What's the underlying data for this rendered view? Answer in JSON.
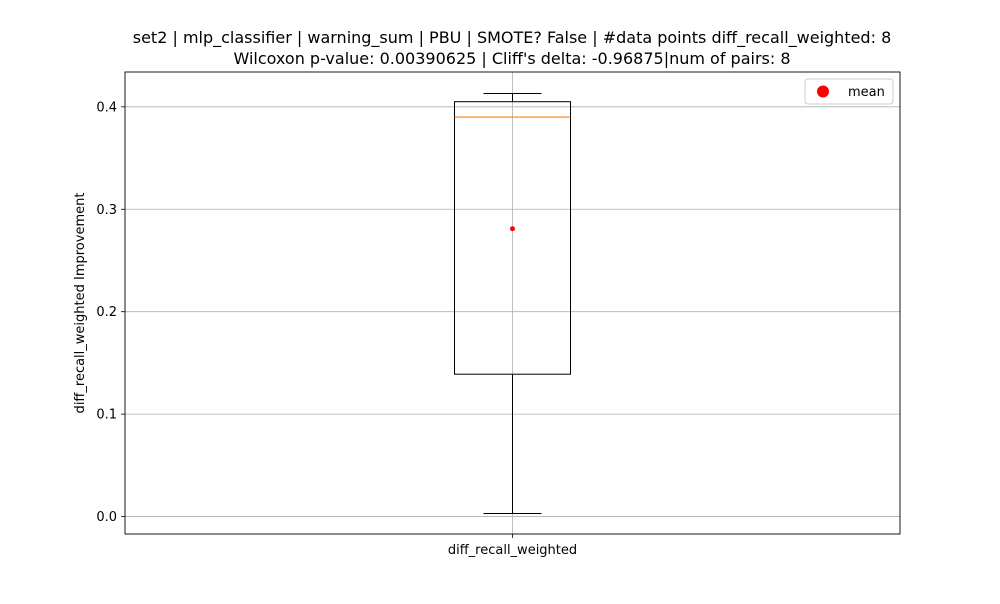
{
  "chart_data": {
    "type": "box",
    "title_line1": "set2 | mlp_classifier | warning_sum | PBU | SMOTE? False | #data points diff_recall_weighted: 8",
    "title_line2": "Wilcoxon p-value: 0.00390625 | Cliff's delta: -0.96875|num of pairs: 8",
    "xlabel": "",
    "ylabel": "diff_recall_weighted Improvement",
    "categories": [
      "diff_recall_weighted"
    ],
    "box": {
      "whisker_low": 0.003,
      "q1": 0.139,
      "median": 0.39,
      "q3": 0.405,
      "whisker_high": 0.413,
      "mean": 0.281
    },
    "ylim": [
      -0.017,
      0.434
    ],
    "yticks": [
      0.0,
      0.1,
      0.2,
      0.3,
      0.4
    ],
    "ytick_labels": [
      "0.0",
      "0.1",
      "0.2",
      "0.3",
      "0.4"
    ],
    "grid": true,
    "legend": {
      "placement": "top-right",
      "entries": [
        {
          "label": "mean",
          "color": "#ff0000",
          "marker": "circle"
        }
      ]
    },
    "colors": {
      "box": "#000000",
      "median": "#ff7f0e",
      "mean": "#ff0000",
      "grid": "#b0b0b0"
    }
  }
}
